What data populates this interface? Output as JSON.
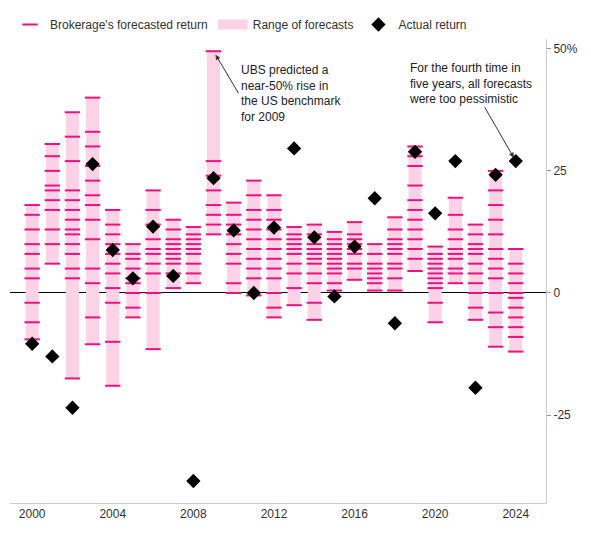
{
  "chart_data": {
    "type": "range",
    "x": [
      2000,
      2001,
      2002,
      2003,
      2004,
      2005,
      2006,
      2007,
      2008,
      2009,
      2010,
      2011,
      2012,
      2013,
      2014,
      2015,
      2016,
      2017,
      2018,
      2019,
      2020,
      2021,
      2022,
      2023,
      2024
    ],
    "series": [
      {
        "name": "Brokerage's forecasted return",
        "type": "scatter",
        "marker": "line",
        "color": "#e8137f",
        "values": [
          [
            18,
            16,
            13,
            10,
            8,
            5,
            3,
            -2,
            -6,
            -9.5
          ],
          [
            30.5,
            28,
            25,
            22,
            21,
            19,
            17,
            13,
            10,
            6
          ],
          [
            37,
            32,
            27,
            21,
            19,
            17,
            15,
            13,
            12,
            10,
            8,
            5,
            3,
            -17.5
          ],
          [
            40,
            33,
            30,
            26,
            23,
            20,
            18,
            15,
            11,
            5,
            2,
            -5,
            -10.5
          ],
          [
            17,
            14,
            12,
            10,
            8,
            6,
            4,
            1,
            -2,
            -10,
            -19
          ],
          [
            10,
            8,
            7,
            5,
            3,
            2,
            0,
            -3,
            -5
          ],
          [
            21,
            17,
            14,
            11,
            9,
            8,
            6,
            4,
            0,
            -11.5
          ],
          [
            15,
            13,
            11,
            10,
            9,
            8,
            7,
            6,
            4,
            1
          ],
          [
            13.5,
            12,
            11,
            10,
            9,
            8,
            6,
            4,
            2
          ],
          [
            49.5,
            27,
            24,
            21,
            18,
            16,
            14,
            12
          ],
          [
            18.5,
            16,
            14,
            12,
            10,
            8,
            6,
            2,
            0
          ],
          [
            23,
            20,
            17,
            15,
            13,
            11,
            9,
            7,
            5,
            3,
            -0.5
          ],
          [
            20,
            17,
            15,
            13,
            11,
            9,
            7,
            5,
            3,
            0,
            -3,
            -5
          ],
          [
            13.5,
            12,
            11,
            10,
            9,
            8,
            6,
            4,
            1,
            -2.5
          ],
          [
            14,
            12,
            10,
            9,
            8,
            7,
            6,
            4,
            2,
            -2,
            -5.5
          ],
          [
            12.5,
            11,
            10,
            9,
            8,
            7,
            6,
            5,
            4,
            2,
            0.5
          ],
          [
            14.5,
            12,
            11,
            10,
            9,
            8,
            6,
            5,
            2.7
          ],
          [
            10,
            8,
            6,
            5,
            4,
            3,
            2,
            0.5
          ],
          [
            15.5,
            13,
            11,
            10,
            9,
            8,
            6,
            5,
            3,
            0.5
          ],
          [
            30,
            28,
            26,
            22,
            19,
            17,
            15,
            13,
            11,
            9,
            7,
            4.5
          ],
          [
            9.5,
            8,
            7,
            6,
            5,
            4,
            3,
            2,
            1,
            -2,
            -6
          ],
          [
            19.5,
            16,
            13,
            11,
            9,
            8,
            7,
            5,
            4,
            2
          ],
          [
            14,
            12,
            10,
            9,
            8,
            6,
            4,
            2,
            0,
            -3,
            -5.5
          ],
          [
            25,
            21,
            18,
            15,
            12,
            9,
            7,
            5,
            3,
            0,
            -4,
            -7,
            -11
          ],
          [
            9,
            6,
            4,
            2,
            0,
            -1,
            -3,
            -5,
            -7,
            -9,
            -12
          ]
        ]
      },
      {
        "name": "Range of forecasts",
        "type": "range",
        "color": "#fcd2e6",
        "low": [
          -9.5,
          6,
          -17.5,
          -10.5,
          -19,
          -5,
          -11.5,
          1,
          2,
          12,
          0,
          -0.5,
          -5,
          -2.5,
          -5.5,
          0.5,
          2.7,
          0.5,
          0.5,
          4.5,
          -6,
          2,
          -5.5,
          -11,
          -12
        ],
        "high": [
          18,
          30.5,
          37,
          40,
          17,
          10,
          21,
          15,
          13.5,
          49.5,
          18.5,
          23,
          20,
          13.5,
          14,
          12.5,
          14.5,
          10,
          15.5,
          30,
          9.5,
          19.5,
          14,
          25,
          9
        ]
      },
      {
        "name": "Actual return",
        "type": "scatter",
        "marker": "diamond",
        "color": "#000000",
        "values": [
          -10.4,
          -13,
          -23.5,
          26.4,
          8.8,
          3,
          13.6,
          3.5,
          -38.5,
          23.5,
          12.8,
          0,
          13.4,
          29.6,
          11.4,
          -0.7,
          9.5,
          19.4,
          -6.2,
          28.9,
          16.3,
          27,
          -19.4,
          24.2,
          27
        ]
      }
    ],
    "annotations": [
      {
        "text": "UBS predicted a\nnear-50% rise in\nthe US benchmark\nfor 2009",
        "x": 2009,
        "y": 49.5
      },
      {
        "text": "For the fourth time in\nfive years, all forecasts\nwere too pessimistic",
        "x": 2024,
        "y": 27
      }
    ],
    "xlim": [
      1998.9,
      2025.5
    ],
    "xticks": [
      2000,
      2004,
      2008,
      2012,
      2016,
      2020,
      2024
    ],
    "ylim": [
      -43,
      52
    ],
    "yticks": [
      {
        "value": 50,
        "label": "50%"
      },
      25,
      0,
      -25
    ],
    "grid": false,
    "legend": "top left"
  }
}
